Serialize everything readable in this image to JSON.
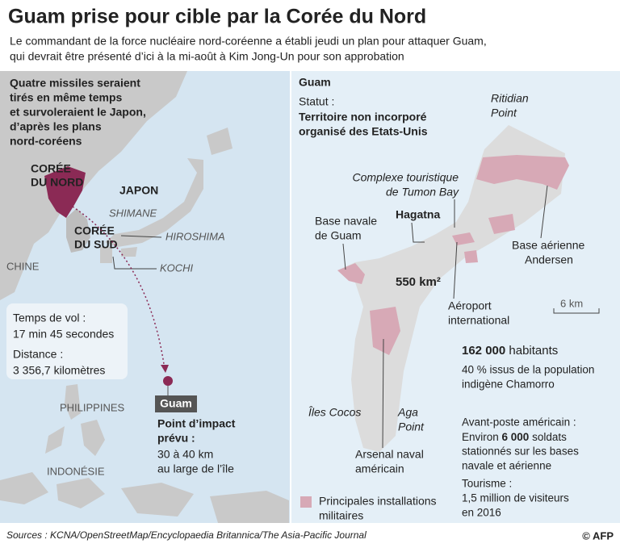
{
  "header": {
    "title": "Guam prise pour cible par la Corée du Nord",
    "subtitle": [
      "Le commandant de la force nucléaire nord-coréenne a établi jeudi un plan pour attaquer Guam,",
      "qui devrait être présenté d’ici à la mi-août à Kim Jong-Un pour son approbation"
    ]
  },
  "left_map": {
    "intro": [
      "Quatre missiles seraient",
      "tirés en même temps",
      "et survoleraient le Japon,",
      "d’après les plans",
      "nord-coréens"
    ],
    "labels": {
      "north_korea": [
        "CORÉE",
        "DU NORD"
      ],
      "japan": "JAPON",
      "shimane": "SHIMANE",
      "south_korea": [
        "CORÉE",
        "DU SUD"
      ],
      "hiroshima": "HIROSHIMA",
      "china": "CHINE",
      "kochi": "KOCHI",
      "philippines": "PHILIPPINES",
      "indonesia": "INDONÉSIE"
    },
    "flight_box": {
      "flight_time_label": "Temps de vol :",
      "flight_time": "17 min 45 secondes",
      "distance_label": "Distance :",
      "distance": "3 356,7 kilomètres"
    },
    "target": {
      "label": "Guam",
      "impact": [
        "Point d’impact",
        "prévu :"
      ],
      "detail": [
        "30 à 40 km",
        "au large de l’île"
      ]
    }
  },
  "right_map": {
    "title": "Guam",
    "status_label": "Statut :",
    "status": [
      "Territoire non incorporé",
      "organisé des Etats-Unis"
    ],
    "places": {
      "ritidian": [
        "Ritidian",
        "Point"
      ],
      "tumon": [
        "Complexe touristique",
        "de Tumon Bay"
      ],
      "hagatna": "Hagatna",
      "naval_base": [
        "Base navale",
        "de Guam"
      ],
      "air_base": [
        "Base aérienne",
        "Andersen"
      ],
      "airport": [
        "Aéroport",
        "international"
      ],
      "cocos": "Îles Cocos",
      "aga": [
        "Aga",
        "Point"
      ],
      "arsenal": [
        "Arsenal naval",
        "américain"
      ]
    },
    "area": "550 km²",
    "scale": "6 km",
    "population": {
      "number": "162 000",
      "unit": " habitants",
      "detail": [
        "40 % issus de la population",
        "indigène Chamorro"
      ]
    },
    "military": {
      "label": "Avant-poste américain :",
      "prefix": "Environ ",
      "number": "6 000",
      "suffix": " soldats",
      "detail": [
        "stationnés sur les bases",
        "navale et aérienne"
      ]
    },
    "tourism": {
      "label": "Tourisme :",
      "detail": [
        "1,5 million de visiteurs",
        "en 2016"
      ]
    },
    "legend": [
      "Principales installations",
      "militaires"
    ]
  },
  "footer": {
    "sources": "Sources : KCNA/OpenStreetMap/Encyclopaedia Britannica/The Asia-Pacific Journal",
    "credit": "© AFP"
  }
}
